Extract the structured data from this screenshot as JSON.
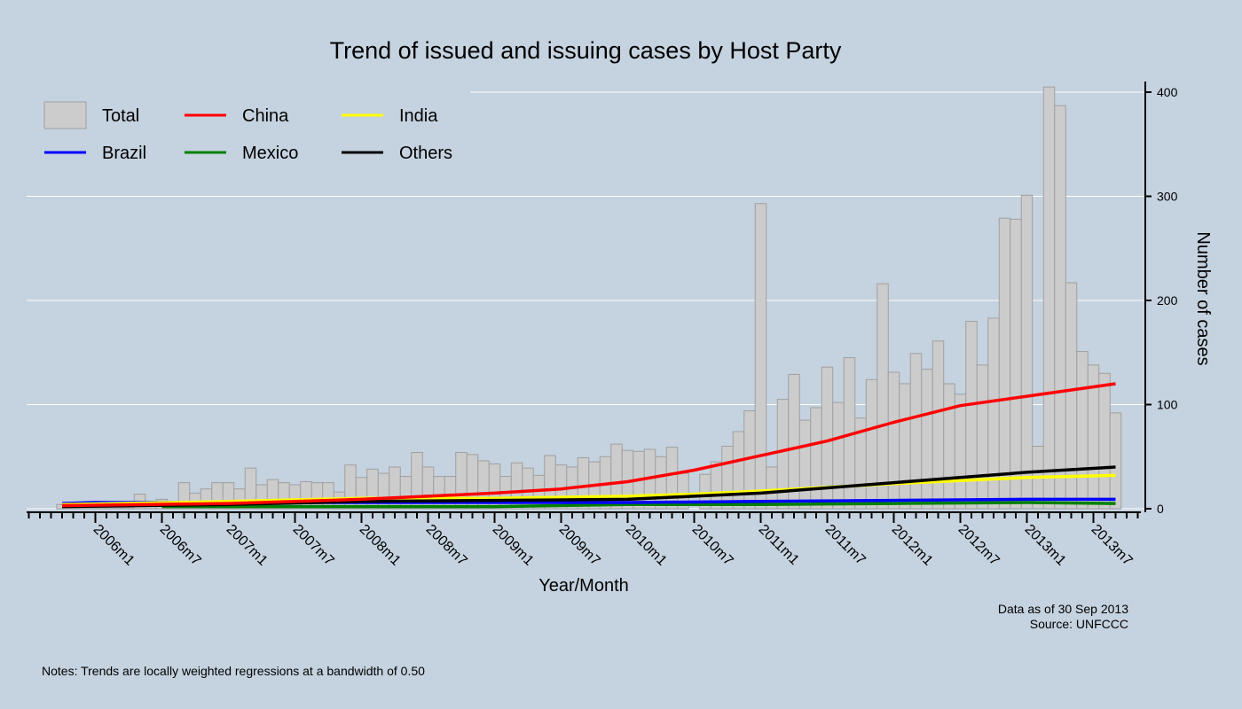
{
  "chart_data": {
    "type": "bar",
    "title": "Trend of issued and issuing cases by Host Party",
    "xlabel": "Year/Month",
    "ylabel": "Number of cases",
    "ylim": [
      0,
      400
    ],
    "yticks": [
      0,
      100,
      200,
      300,
      400
    ],
    "grid": true,
    "legend_placement": "top-left",
    "xtick_labels": [
      "2006m1",
      "2006m7",
      "2007m1",
      "2007m7",
      "2008m1",
      "2008m7",
      "2009m1",
      "2009m7",
      "2010m1",
      "2010m7",
      "2011m1",
      "2011m7",
      "2012m1",
      "2012m7",
      "2013m1",
      "2013m7"
    ],
    "bar_series": {
      "name": "Total",
      "color": "#cccccc",
      "start": "2005m10",
      "values": [
        4,
        1,
        1,
        1,
        1,
        1,
        1,
        14,
        3,
        9,
        3,
        25,
        15,
        19,
        25,
        25,
        19,
        39,
        23,
        28,
        25,
        23,
        26,
        25,
        25,
        16,
        42,
        30,
        38,
        34,
        40,
        31,
        54,
        40,
        31,
        31,
        54,
        52,
        46,
        43,
        31,
        44,
        39,
        32,
        51,
        42,
        40,
        49,
        45,
        50,
        62,
        56,
        55,
        57,
        50,
        59,
        34,
        0,
        33,
        45,
        60,
        74,
        94,
        293,
        40,
        105,
        129,
        85,
        97,
        136,
        102,
        145,
        87,
        124,
        216,
        131,
        120,
        149,
        134,
        161,
        120,
        110,
        180,
        138,
        183,
        279,
        278,
        301,
        60,
        405,
        387,
        217,
        151,
        138,
        130,
        92
      ]
    },
    "trend_series": [
      {
        "name": "China",
        "color": "#ff0000",
        "x": [
          "2005m10",
          "2007m1",
          "2008m1",
          "2008m7",
          "2009m1",
          "2009m7",
          "2010m1",
          "2010m7",
          "2011m1",
          "2011m7",
          "2012m1",
          "2012m7",
          "2013m1",
          "2013m9"
        ],
        "values": [
          3,
          5,
          9,
          12,
          15,
          19,
          26,
          37,
          51,
          65,
          83,
          99,
          108,
          120
        ]
      },
      {
        "name": "India",
        "color": "#ffff00",
        "x": [
          "2005m10",
          "2007m1",
          "2008m1",
          "2009m1",
          "2010m1",
          "2010m7",
          "2011m1",
          "2012m1",
          "2013m1",
          "2013m9"
        ],
        "values": [
          4,
          7,
          10,
          10,
          12,
          14,
          17,
          24,
          30,
          32
        ]
      },
      {
        "name": "Brazil",
        "color": "#0000ff",
        "x": [
          "2005m10",
          "2006m1",
          "2007m1",
          "2008m1",
          "2009m1",
          "2010m1",
          "2011m1",
          "2012m1",
          "2013m1",
          "2013m9"
        ],
        "values": [
          5,
          6,
          6,
          6,
          6,
          6,
          7,
          8,
          9,
          9
        ]
      },
      {
        "name": "Mexico",
        "color": "#008000",
        "x": [
          "2006m7",
          "2007m7",
          "2009m1",
          "2010m1",
          "2011m1",
          "2012m1",
          "2013m1",
          "2013m9"
        ],
        "values": [
          2,
          2,
          2,
          4,
          4,
          5,
          6,
          5
        ]
      },
      {
        "name": "Others",
        "color": "#000000",
        "x": [
          "2005m10",
          "2007m1",
          "2008m1",
          "2009m1",
          "2010m1",
          "2010m7",
          "2011m1",
          "2012m1",
          "2012m7",
          "2013m1",
          "2013m9"
        ],
        "values": [
          2,
          4,
          7,
          8,
          9,
          12,
          15,
          25,
          30,
          35,
          40
        ]
      }
    ],
    "legend": [
      "Total",
      "China",
      "India",
      "Brazil",
      "Mexico",
      "Others"
    ]
  },
  "annotations": {
    "data_as_of": "Data as of 30 Sep 2013",
    "source": "Source: UNFCCC",
    "notes": "Notes: Trends are locally weighted regressions at a bandwidth of 0.50"
  }
}
